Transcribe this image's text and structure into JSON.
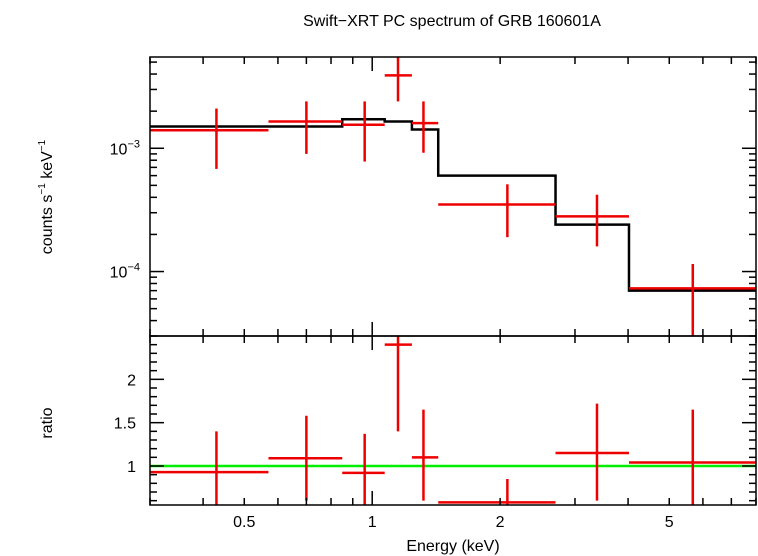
{
  "chart_data": [
    {
      "type": "scatter",
      "panel": "spectrum",
      "title": "Swift−XRT PC spectrum of GRB 160601A",
      "ylabel": "counts s",
      "ylabel_exp1": "−1",
      "ylabel_mid": " keV",
      "ylabel_exp2": "−1",
      "x_scale": "log",
      "y_scale": "log",
      "xlim": [
        0.3,
        8.0
      ],
      "ylim": [
        3e-05,
        0.0055
      ],
      "y_ticks": [
        {
          "value": 0.001,
          "base": "10",
          "exp": "−3"
        },
        {
          "value": 0.0001,
          "base": "10",
          "exp": "−4"
        }
      ],
      "data_points": [
        {
          "x": 0.43,
          "xlo": 0.3,
          "xhi": 0.57,
          "y": 0.0014,
          "ylo": 0.00068,
          "yhi": 0.0021
        },
        {
          "x": 0.7,
          "xlo": 0.57,
          "xhi": 0.85,
          "y": 0.00165,
          "ylo": 0.0009,
          "yhi": 0.0024
        },
        {
          "x": 0.96,
          "xlo": 0.85,
          "xhi": 1.07,
          "y": 0.00155,
          "ylo": 0.00078,
          "yhi": 0.0024
        },
        {
          "x": 1.15,
          "xlo": 1.07,
          "xhi": 1.24,
          "y": 0.0039,
          "ylo": 0.0024,
          "yhi": 0.0055
        },
        {
          "x": 1.32,
          "xlo": 1.24,
          "xhi": 1.43,
          "y": 0.0016,
          "ylo": 0.00092,
          "yhi": 0.0024
        },
        {
          "x": 2.08,
          "xlo": 1.43,
          "xhi": 2.7,
          "y": 0.00035,
          "ylo": 0.00019,
          "yhi": 0.00051
        },
        {
          "x": 3.38,
          "xlo": 2.7,
          "xhi": 4.02,
          "y": 0.00028,
          "ylo": 0.00016,
          "yhi": 0.00042
        },
        {
          "x": 5.68,
          "xlo": 4.02,
          "xhi": 8.0,
          "y": 7.3e-05,
          "ylo": 3e-05,
          "yhi": 0.000115
        }
      ],
      "model_steps": [
        {
          "xlo": 0.3,
          "xhi": 0.85,
          "y": 0.0015
        },
        {
          "xlo": 0.85,
          "xhi": 1.07,
          "y": 0.00172
        },
        {
          "xlo": 1.07,
          "xhi": 1.24,
          "y": 0.00165
        },
        {
          "xlo": 1.24,
          "xhi": 1.43,
          "y": 0.00142
        },
        {
          "xlo": 1.43,
          "xhi": 2.7,
          "y": 0.0006
        },
        {
          "xlo": 2.7,
          "xhi": 4.02,
          "y": 0.00024
        },
        {
          "xlo": 4.02,
          "xhi": 8.0,
          "y": 7e-05
        }
      ],
      "data_color": "#ee0000",
      "model_color": "#000000"
    },
    {
      "type": "scatter",
      "panel": "ratio",
      "xlabel": "Energy (keV)",
      "ylabel": "ratio",
      "x_scale": "log",
      "y_scale": "linear",
      "xlim": [
        0.3,
        8.0
      ],
      "ylim": [
        0.55,
        2.5
      ],
      "x_ticks": [
        {
          "value": 0.5,
          "label": "0.5"
        },
        {
          "value": 1,
          "label": "1"
        },
        {
          "value": 2,
          "label": "2"
        },
        {
          "value": 5,
          "label": "5"
        }
      ],
      "y_ticks": [
        {
          "value": 1,
          "label": "1"
        },
        {
          "value": 1.5,
          "label": "1.5"
        },
        {
          "value": 2,
          "label": "2"
        }
      ],
      "data_points": [
        {
          "x": 0.43,
          "xlo": 0.3,
          "xhi": 0.57,
          "y": 0.93,
          "ylo": 0.55,
          "yhi": 1.4
        },
        {
          "x": 0.7,
          "xlo": 0.57,
          "xhi": 0.85,
          "y": 1.09,
          "ylo": 0.6,
          "yhi": 1.58
        },
        {
          "x": 0.96,
          "xlo": 0.85,
          "xhi": 1.07,
          "y": 0.92,
          "ylo": 0.55,
          "yhi": 1.37
        },
        {
          "x": 1.15,
          "xlo": 1.07,
          "xhi": 1.24,
          "y": 2.4,
          "ylo": 1.4,
          "yhi": 2.5
        },
        {
          "x": 1.32,
          "xlo": 1.24,
          "xhi": 1.43,
          "y": 1.1,
          "ylo": 0.6,
          "yhi": 1.65
        },
        {
          "x": 2.08,
          "xlo": 1.43,
          "xhi": 2.7,
          "y": 0.58,
          "ylo": 0.55,
          "yhi": 0.85
        },
        {
          "x": 3.38,
          "xlo": 2.7,
          "xhi": 4.02,
          "y": 1.15,
          "ylo": 0.6,
          "yhi": 1.72
        },
        {
          "x": 5.68,
          "xlo": 4.02,
          "xhi": 8.0,
          "y": 1.04,
          "ylo": 0.55,
          "yhi": 1.65
        }
      ],
      "reference_line": 1.0,
      "data_color": "#ee0000",
      "reference_color": "#00ee00"
    }
  ]
}
